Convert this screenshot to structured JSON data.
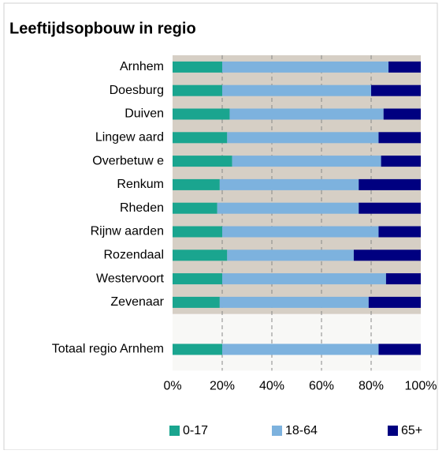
{
  "chart_data": {
    "type": "stacked-bar-horizontal",
    "title": "Leeftijdsopbouw in regio",
    "categories": [
      "Arnhem",
      "Doesburg",
      "Duiven",
      "Lingew aard",
      "Overbetuw e",
      "Renkum",
      "Rheden",
      "Rijnw aarden",
      "Rozendaal",
      "Westervoort",
      "Zevenaar",
      null,
      "Totaal regio Arnhem"
    ],
    "series": [
      {
        "name": "0-17",
        "color": "#1aa58f",
        "values": [
          20,
          20,
          23,
          22,
          24,
          19,
          18,
          20,
          22,
          20,
          19,
          null,
          20
        ]
      },
      {
        "name": "18-64",
        "color": "#7db2de",
        "values": [
          67,
          60,
          62,
          61,
          60,
          56,
          57,
          63,
          51,
          66,
          60,
          null,
          63
        ]
      },
      {
        "name": "65+",
        "color": "#000080",
        "values": [
          13,
          20,
          15,
          17,
          16,
          25,
          25,
          17,
          27,
          14,
          21,
          null,
          17
        ]
      }
    ],
    "xlim": [
      0,
      100
    ],
    "xticks": [
      {
        "value": 0,
        "label": "0%"
      },
      {
        "value": 20,
        "label": "20%"
      },
      {
        "value": 40,
        "label": "40%"
      },
      {
        "value": 60,
        "label": "60%"
      },
      {
        "value": 80,
        "label": "80%"
      },
      {
        "value": 100,
        "label": "100%"
      }
    ],
    "grid": true,
    "legend": "bottom"
  }
}
